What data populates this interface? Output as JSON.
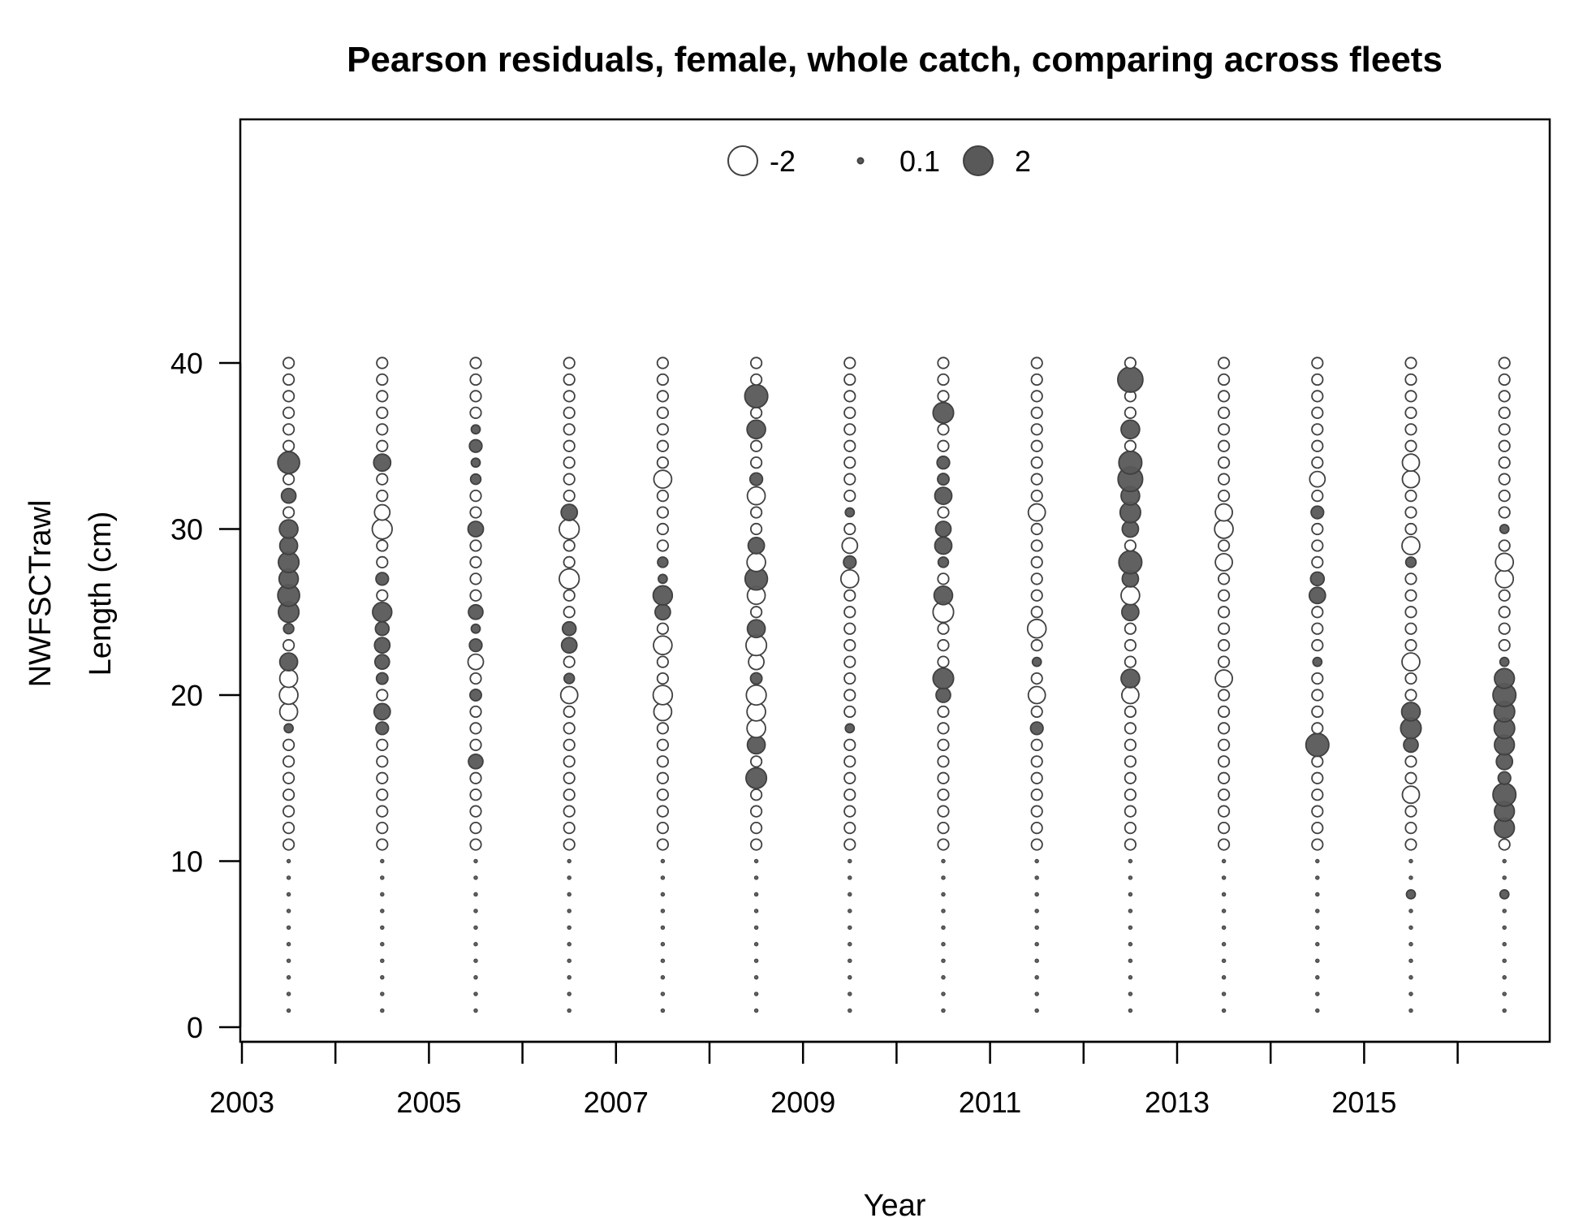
{
  "chart_data": {
    "type": "scatter",
    "subtype": "bubble",
    "title": "Pearson residuals, female, whole catch, comparing across fleets",
    "xlabel": "Year",
    "ylabel_lines": [
      "NWFSCTrawl",
      "Length (cm)"
    ],
    "xlim": [
      2003,
      2017
    ],
    "ylim": [
      0,
      40
    ],
    "x_ticks": [
      2003,
      2004,
      2005,
      2006,
      2007,
      2008,
      2009,
      2010,
      2011,
      2012,
      2013,
      2014,
      2015,
      2016
    ],
    "x_tick_labels": [
      {
        "value": 2003,
        "label": "2003"
      },
      {
        "value": 2005,
        "label": "2005"
      },
      {
        "value": 2007,
        "label": "2007"
      },
      {
        "value": 2009,
        "label": "2009"
      },
      {
        "value": 2011,
        "label": "2011"
      },
      {
        "value": 2013,
        "label": "2013"
      },
      {
        "value": 2015,
        "label": "2015"
      }
    ],
    "y_ticks": [
      {
        "value": 0,
        "label": "0"
      },
      {
        "value": 10,
        "label": "10"
      },
      {
        "value": 20,
        "label": "20"
      },
      {
        "value": 30,
        "label": "30"
      },
      {
        "value": 40,
        "label": "40"
      }
    ],
    "legend": {
      "placement": "top-center",
      "entries": [
        {
          "value": -2,
          "label": "-2"
        },
        {
          "value": 0.1,
          "label": "0.1"
        },
        {
          "value": 2,
          "label": "2"
        }
      ]
    },
    "colors": {
      "positive_fill": "#595959",
      "negative_fill": "#ffffff",
      "outline": "#404040"
    },
    "series": [
      {
        "year": 2003.5,
        "residuals": {
          "34": 1.8,
          "32": 0.8,
          "30": 1.3,
          "29": 1.2,
          "28": 1.6,
          "27": 1.4,
          "26": 1.8,
          "25": 1.6,
          "24": 0.4,
          "22": 1.2,
          "21": -1.2,
          "20": -1.3,
          "19": -1.2,
          "18": 0.3
        }
      },
      {
        "year": 2004.5,
        "residuals": {
          "34": 1.1,
          "31": -0.9,
          "30": -1.5,
          "27": 0.6,
          "25": 1.4,
          "24": 0.7,
          "23": 0.9,
          "22": 0.8,
          "21": 0.5,
          "19": 1.0,
          "18": 0.6
        }
      },
      {
        "year": 2005.5,
        "residuals": {
          "36": 0.3,
          "35": 0.6,
          "34": 0.3,
          "33": 0.4,
          "30": 0.9,
          "25": 0.8,
          "24": 0.3,
          "23": 0.6,
          "22": -0.9,
          "20": 0.5,
          "16": 0.8
        }
      },
      {
        "year": 2006.5,
        "residuals": {
          "31": 1.0,
          "30": -1.5,
          "27": -1.5,
          "24": 0.7,
          "23": 0.9,
          "21": 0.4,
          "20": -1.1
        }
      },
      {
        "year": 2007.5,
        "residuals": {
          "33": -1.2,
          "28": 0.4,
          "27": 0.3,
          "26": 1.4,
          "25": 0.9,
          "23": -1.3,
          "20": -1.4,
          "19": -1.2
        }
      },
      {
        "year": 2008.5,
        "residuals": {
          "38": 2.0,
          "36": 1.3,
          "33": 0.6,
          "32": -1.2,
          "29": 1.0,
          "28": -1.3,
          "27": 1.9,
          "26": -1.2,
          "24": 1.2,
          "23": -1.6,
          "22": -0.9,
          "21": 0.5,
          "20": -1.5,
          "19": -1.3,
          "18": -1.3,
          "17": 1.2,
          "15": 1.6
        }
      },
      {
        "year": 2009.5,
        "residuals": {
          "31": 0.3,
          "29": -0.9,
          "28": 0.6,
          "27": -1.2,
          "18": 0.3
        }
      },
      {
        "year": 2010.5,
        "residuals": {
          "37": 1.6,
          "34": 0.6,
          "33": 0.5,
          "32": 1.1,
          "30": 0.9,
          "29": 1.1,
          "28": 0.4,
          "26": 1.3,
          "25": -1.6,
          "21": 1.6,
          "20": 0.8
        }
      },
      {
        "year": 2011.5,
        "residuals": {
          "31": -1.1,
          "24": -1.3,
          "22": 0.3,
          "20": -1.1,
          "18": 0.6
        }
      },
      {
        "year": 2012.5,
        "residuals": {
          "39": 2.4,
          "36": 1.3,
          "34": 2.0,
          "33": 2.3,
          "32": 1.3,
          "31": 1.6,
          "30": 1.0,
          "28": 2.0,
          "27": 1.0,
          "26": -1.3,
          "25": 1.1,
          "21": 1.3,
          "20": -1.1
        }
      },
      {
        "year": 2013.5,
        "residuals": {
          "31": -1.1,
          "30": -1.3,
          "28": -1.1,
          "21": -1.1
        }
      },
      {
        "year": 2014.5,
        "residuals": {
          "33": -0.9,
          "31": 0.6,
          "27": 0.7,
          "26": 1.0,
          "22": 0.3,
          "17": 2.0
        }
      },
      {
        "year": 2015.5,
        "residuals": {
          "34": -1.1,
          "33": -1.1,
          "29": -1.2,
          "28": 0.4,
          "22": -1.2,
          "19": 1.3,
          "18": 1.6,
          "17": 0.8,
          "14": -1.1,
          "8": 0.3
        }
      },
      {
        "year": 2016.5,
        "residuals": {
          "30": 0.3,
          "28": -1.2,
          "27": -1.2,
          "22": 0.3,
          "21": 1.5,
          "20": 2.0,
          "19": 1.6,
          "18": 1.6,
          "17": 1.5,
          "16": 1.0,
          "15": 0.6,
          "14": 2.0,
          "13": 1.5,
          "12": 1.5,
          "8": 0.3
        }
      }
    ]
  }
}
